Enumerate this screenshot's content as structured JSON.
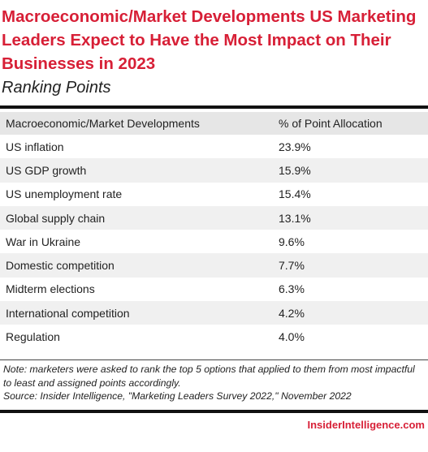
{
  "title": "Macroeconomic/Market Developments US Marketing Leaders Expect to Have the Most Impact on Their Businesses in 2023",
  "subtitle": "Ranking Points",
  "chart_data": {
    "type": "table",
    "columns": [
      "Macroeconomic/Market Developments",
      "% of Point Allocation"
    ],
    "rows": [
      {
        "label": "US inflation",
        "value": "23.9%"
      },
      {
        "label": "US GDP growth",
        "value": "15.9%"
      },
      {
        "label": "US unemployment rate",
        "value": "15.4%"
      },
      {
        "label": "Global supply chain",
        "value": "13.1%"
      },
      {
        "label": "War in Ukraine",
        "value": "9.6%"
      },
      {
        "label": "Domestic competition",
        "value": "7.7%"
      },
      {
        "label": "Midterm elections",
        "value": "6.3%"
      },
      {
        "label": "International competition",
        "value": "4.2%"
      },
      {
        "label": "Regulation",
        "value": "4.0%"
      }
    ]
  },
  "note": "Note: marketers were asked to rank the top 5 options that applied to them from most impactful to least and assigned points accordingly.",
  "source": "Source: Insider Intelligence, \"Marketing Leaders Survey 2022,\" November 2022",
  "brand": "InsiderIntelligence.com"
}
